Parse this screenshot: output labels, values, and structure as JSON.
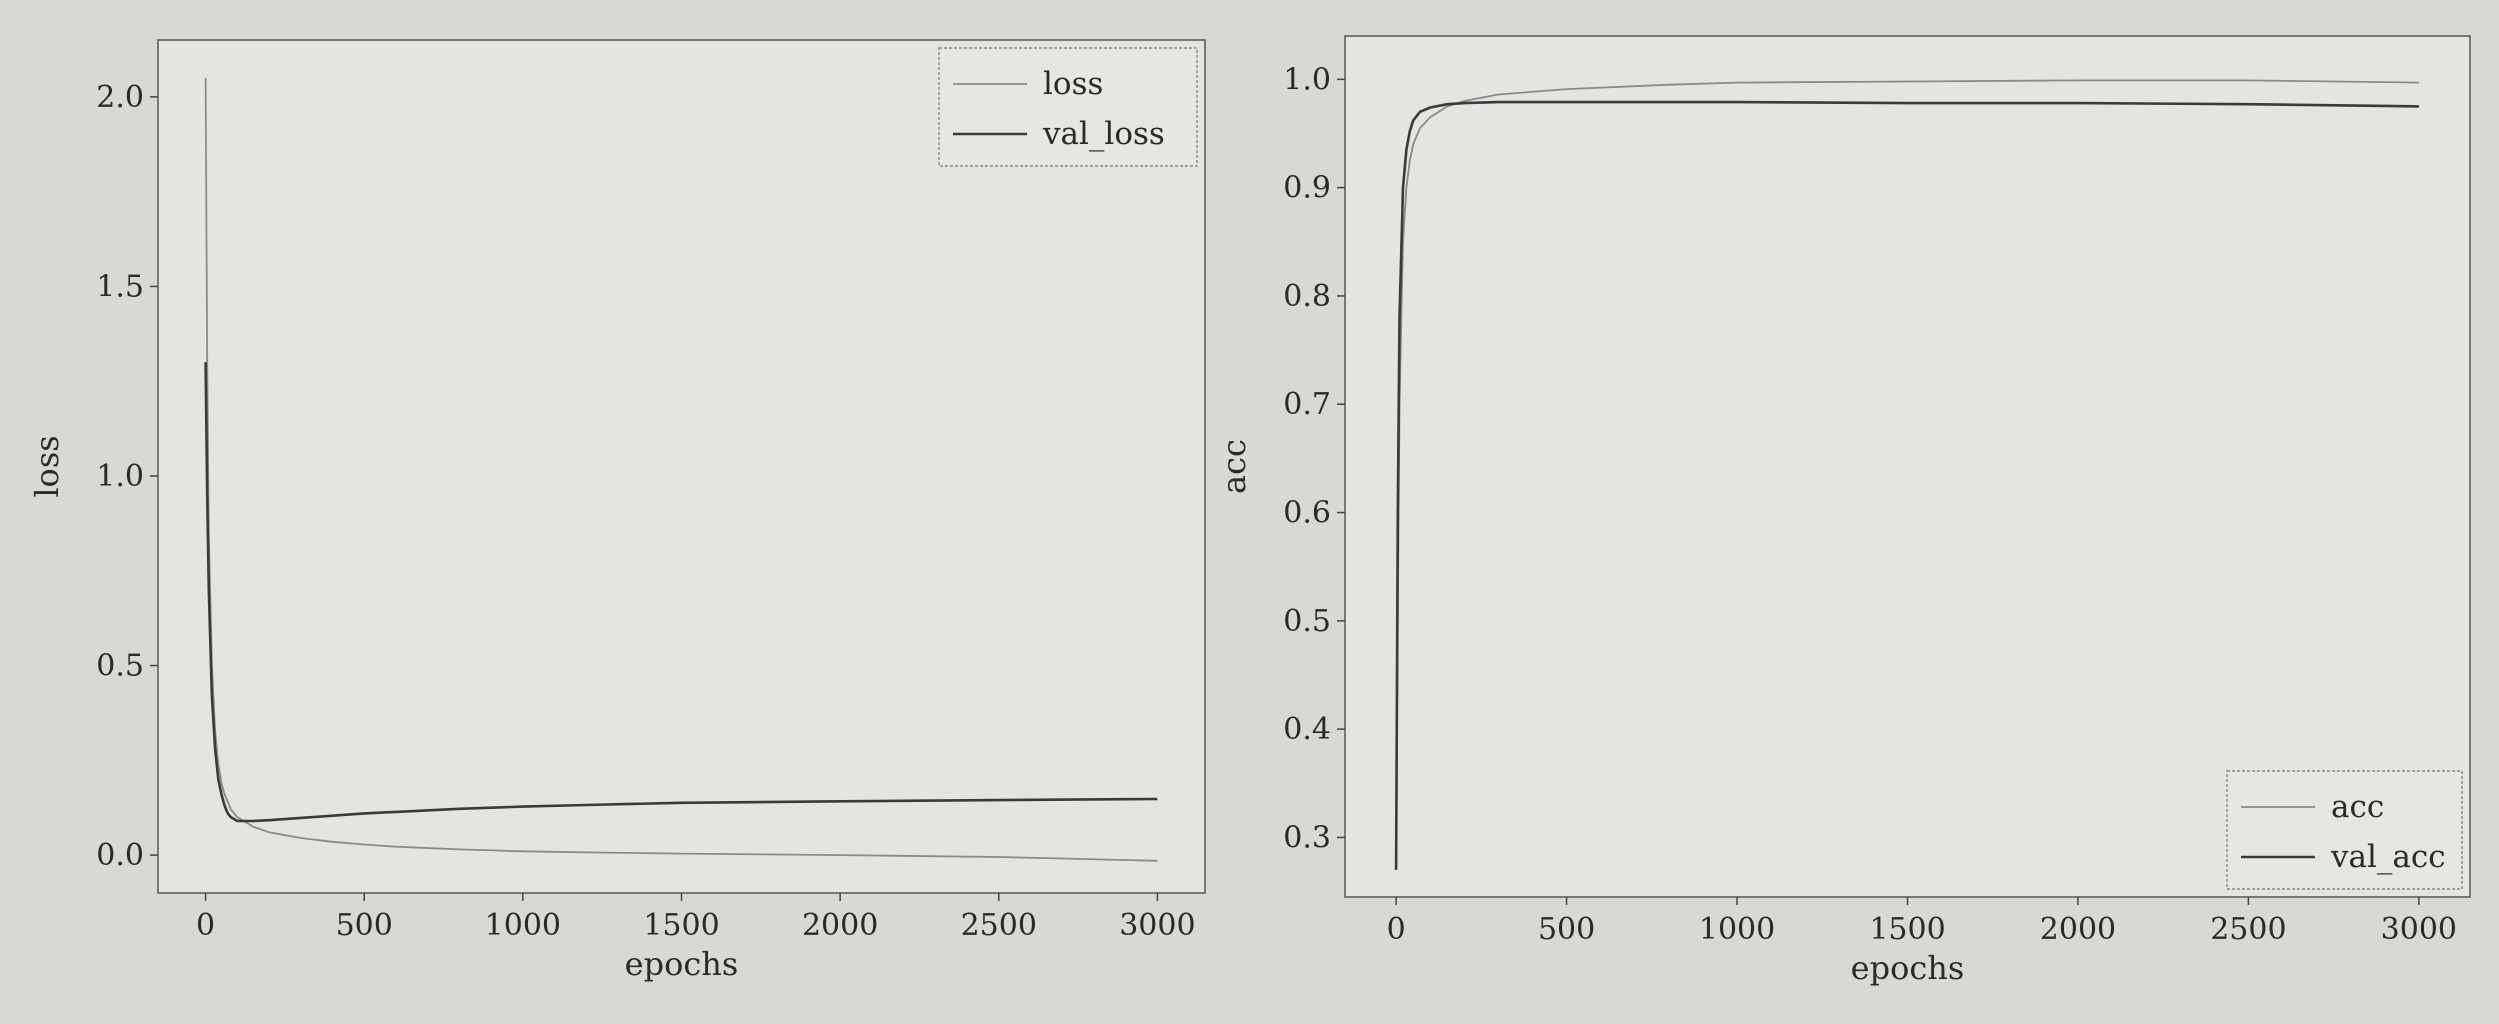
{
  "chart_data": [
    {
      "type": "line",
      "xlabel": "epochs",
      "ylabel": "loss",
      "xlim": [
        -150,
        3150
      ],
      "ylim": [
        -0.1,
        2.15
      ],
      "xticks": [
        0,
        500,
        1000,
        1500,
        2000,
        2500,
        3000
      ],
      "yticks": [
        0.0,
        0.5,
        1.0,
        1.5,
        2.0
      ],
      "legend_position": "upper-right",
      "colors": {
        "loss": "#8a8a8a",
        "val_loss": "#3a3a3a"
      },
      "series": [
        {
          "name": "loss",
          "x": [
            0,
            5,
            10,
            20,
            30,
            40,
            50,
            60,
            70,
            80,
            100,
            150,
            200,
            300,
            400,
            500,
            600,
            800,
            1000,
            1200,
            1500,
            2000,
            2500,
            3000
          ],
          "y": [
            2.05,
            1.3,
            0.85,
            0.5,
            0.33,
            0.24,
            0.19,
            0.16,
            0.14,
            0.12,
            0.1,
            0.075,
            0.06,
            0.045,
            0.035,
            0.028,
            0.022,
            0.015,
            0.01,
            0.007,
            0.004,
            0.0,
            -0.005,
            -0.015
          ]
        },
        {
          "name": "val_loss",
          "x": [
            0,
            5,
            10,
            20,
            30,
            40,
            50,
            60,
            70,
            80,
            100,
            150,
            200,
            300,
            400,
            500,
            600,
            800,
            1000,
            1200,
            1500,
            2000,
            2500,
            3000
          ],
          "y": [
            1.3,
            0.95,
            0.7,
            0.42,
            0.28,
            0.2,
            0.16,
            0.13,
            0.11,
            0.1,
            0.09,
            0.09,
            0.092,
            0.098,
            0.104,
            0.11,
            0.114,
            0.122,
            0.128,
            0.132,
            0.138,
            0.142,
            0.145,
            0.148
          ]
        }
      ]
    },
    {
      "type": "line",
      "xlabel": "epochs",
      "ylabel": "acc",
      "xlim": [
        -150,
        3150
      ],
      "ylim": [
        0.245,
        1.04
      ],
      "xticks": [
        0,
        500,
        1000,
        1500,
        2000,
        2500,
        3000
      ],
      "yticks": [
        0.3,
        0.4,
        0.5,
        0.6,
        0.7,
        0.8,
        0.9,
        1.0
      ],
      "legend_position": "lower-right",
      "colors": {
        "acc": "#8a8a8a",
        "val_acc": "#3a3a3a"
      },
      "series": [
        {
          "name": "acc",
          "x": [
            0,
            5,
            10,
            20,
            30,
            40,
            50,
            70,
            100,
            150,
            200,
            300,
            500,
            800,
            1000,
            1500,
            2000,
            2500,
            3000
          ],
          "y": [
            0.27,
            0.5,
            0.7,
            0.85,
            0.9,
            0.925,
            0.94,
            0.955,
            0.965,
            0.975,
            0.98,
            0.986,
            0.991,
            0.995,
            0.997,
            0.998,
            0.999,
            0.999,
            0.997
          ]
        },
        {
          "name": "val_acc",
          "x": [
            0,
            5,
            10,
            20,
            30,
            40,
            50,
            70,
            100,
            150,
            200,
            300,
            500,
            800,
            1000,
            1500,
            2000,
            2500,
            3000
          ],
          "y": [
            0.27,
            0.6,
            0.78,
            0.9,
            0.935,
            0.952,
            0.962,
            0.97,
            0.974,
            0.977,
            0.978,
            0.979,
            0.979,
            0.979,
            0.979,
            0.978,
            0.978,
            0.977,
            0.975
          ]
        }
      ]
    }
  ]
}
